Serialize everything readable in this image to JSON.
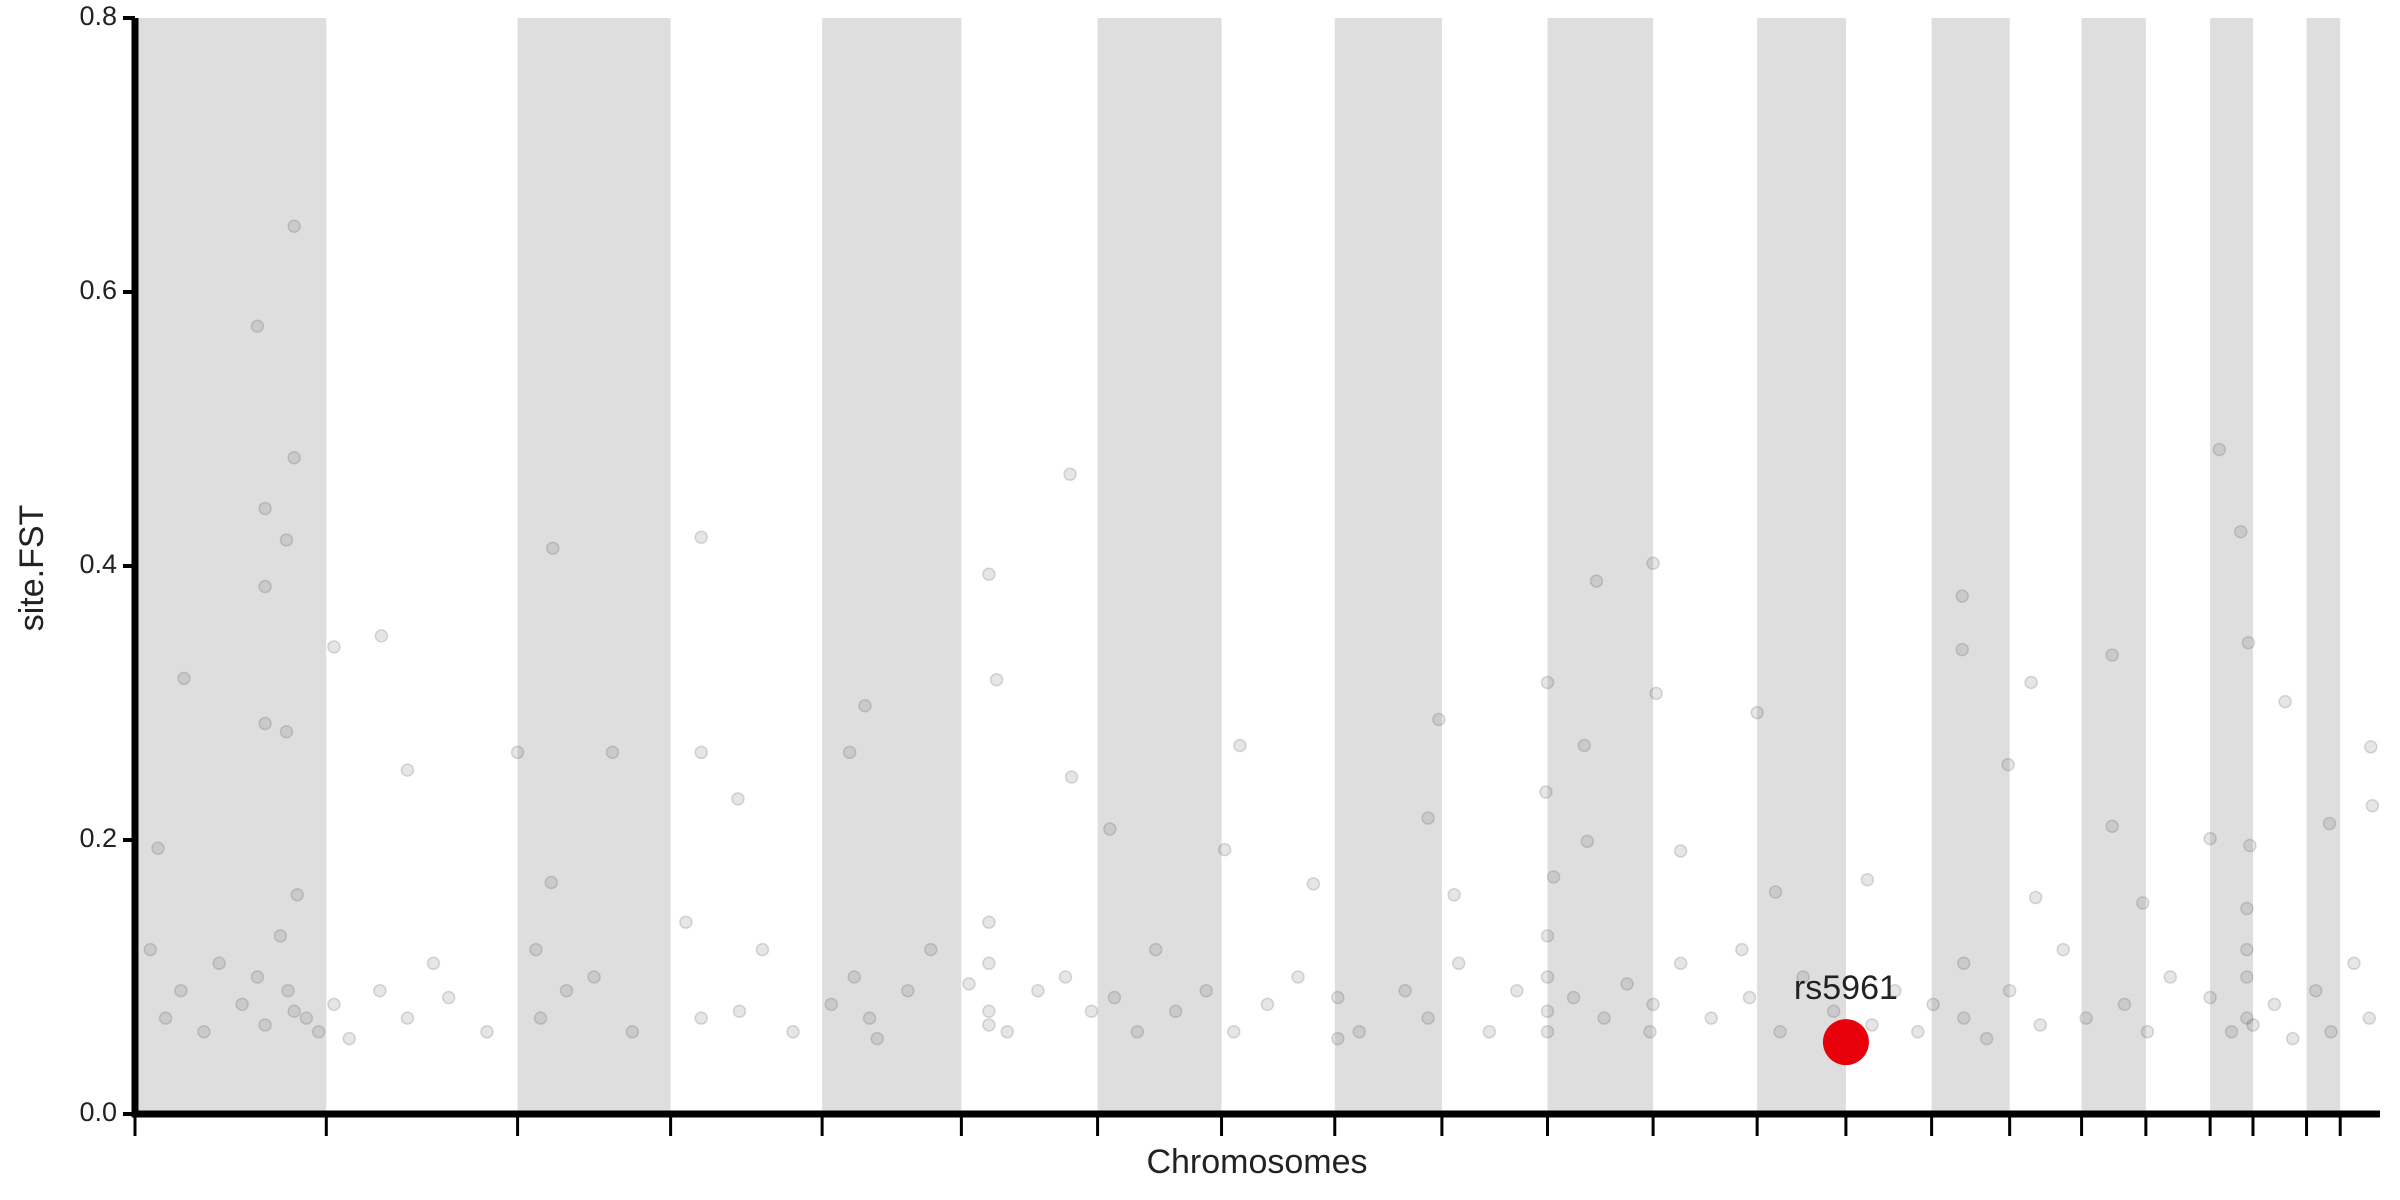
{
  "chart_data": {
    "type": "scatter",
    "x_label": "Chromosomes",
    "y_label": "site.FST",
    "xlim": [
      0,
      1467
    ],
    "xticks": [
      0,
      125,
      250,
      350,
      449,
      540,
      629,
      710,
      784,
      854,
      923,
      992,
      1060,
      1118,
      1174,
      1225,
      1272,
      1314,
      1356,
      1384,
      1419,
      1441
    ],
    "ylim": [
      0,
      0.8
    ],
    "yticks": [
      {
        "value": 0,
        "label": "0.0"
      },
      0.2,
      0.4,
      0.6,
      0.8
    ],
    "shade_color": "#dedede",
    "point_opacity": 0.15,
    "series": [
      {
        "color": "#555555",
        "x": [
          80,
          104,
          104,
          85,
          99,
          85,
          85,
          99,
          32,
          130,
          161,
          273,
          370,
          611,
          558,
          563,
          955,
          992,
          1362,
          1376,
          1381,
          1194,
          1194,
          1292,
          1239,
          923,
          852,
          1405,
          477,
          178,
          312,
          250,
          370,
          467,
          722,
          1461,
          947,
          1060,
          994,
          612,
          637,
          922,
          1462,
          1434,
          1224,
          1292,
          845,
          394,
          15,
          272,
          927,
          949,
          1010,
          1356,
          1382,
          712,
          770,
          862,
          1072,
          1132,
          1242,
          1312,
          10,
          20,
          30,
          45,
          55,
          70,
          80,
          85,
          95,
          100,
          104,
          106,
          112,
          120,
          130,
          140,
          160,
          178,
          195,
          205,
          230,
          262,
          265,
          282,
          300,
          325,
          360,
          370,
          395,
          410,
          430,
          455,
          470,
          480,
          485,
          505,
          520,
          545,
          558,
          558,
          558,
          558,
          570,
          590,
          608,
          625,
          640,
          655,
          667,
          680,
          700,
          718,
          740,
          760,
          786,
          786,
          800,
          830,
          845,
          865,
          885,
          903,
          923,
          923,
          923,
          923,
          940,
          960,
          975,
          990,
          992,
          1010,
          1030,
          1050,
          1055,
          1075,
          1090,
          1110,
          1135,
          1150,
          1165,
          1175,
          1195,
          1195,
          1210,
          1225,
          1245,
          1260,
          1275,
          1300,
          1315,
          1330,
          1356,
          1370,
          1380,
          1380,
          1380,
          1380,
          1384,
          1398,
          1410,
          1425,
          1435,
          1450,
          1460
        ],
        "values": [
          0.575,
          0.648,
          0.479,
          0.442,
          0.419,
          0.385,
          0.285,
          0.279,
          0.318,
          0.341,
          0.349,
          0.413,
          0.421,
          0.467,
          0.394,
          0.317,
          0.389,
          0.402,
          0.485,
          0.425,
          0.344,
          0.378,
          0.339,
          0.335,
          0.315,
          0.315,
          0.288,
          0.301,
          0.298,
          0.251,
          0.264,
          0.264,
          0.264,
          0.264,
          0.269,
          0.268,
          0.269,
          0.293,
          0.307,
          0.246,
          0.208,
          0.235,
          0.225,
          0.212,
          0.255,
          0.21,
          0.216,
          0.23,
          0.194,
          0.169,
          0.173,
          0.199,
          0.192,
          0.201,
          0.196,
          0.193,
          0.168,
          0.16,
          0.162,
          0.171,
          0.158,
          0.154,
          0.12,
          0.07,
          0.09,
          0.06,
          0.11,
          0.08,
          0.1,
          0.065,
          0.13,
          0.09,
          0.075,
          0.16,
          0.07,
          0.06,
          0.08,
          0.055,
          0.09,
          0.07,
          0.11,
          0.085,
          0.06,
          0.12,
          0.07,
          0.09,
          0.1,
          0.06,
          0.14,
          0.07,
          0.075,
          0.12,
          0.06,
          0.08,
          0.1,
          0.07,
          0.055,
          0.09,
          0.12,
          0.095,
          0.065,
          0.11,
          0.14,
          0.075,
          0.06,
          0.09,
          0.1,
          0.075,
          0.085,
          0.06,
          0.12,
          0.075,
          0.09,
          0.06,
          0.08,
          0.1,
          0.085,
          0.055,
          0.06,
          0.09,
          0.07,
          0.11,
          0.06,
          0.09,
          0.075,
          0.06,
          0.1,
          0.13,
          0.085,
          0.07,
          0.095,
          0.06,
          0.08,
          0.11,
          0.07,
          0.12,
          0.085,
          0.06,
          0.1,
          0.075,
          0.065,
          0.09,
          0.06,
          0.08,
          0.11,
          0.07,
          0.055,
          0.09,
          0.065,
          0.12,
          0.07,
          0.08,
          0.06,
          0.1,
          0.085,
          0.06,
          0.12,
          0.07,
          0.15,
          0.1,
          0.065,
          0.08,
          0.055,
          0.09,
          0.06,
          0.11,
          0.07
        ]
      }
    ],
    "annotations": [
      {
        "label": "rs5961",
        "x": 1118,
        "value": 0.0525,
        "color": "#e8000b"
      }
    ]
  }
}
